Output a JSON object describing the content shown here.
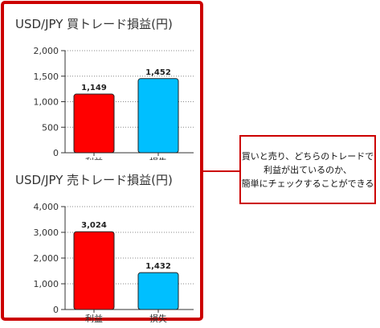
{
  "chart_data": [
    {
      "type": "bar",
      "title": "USD/JPY 買トレード損益(円)",
      "categories": [
        "利益",
        "損失"
      ],
      "values": [
        1149,
        1452
      ],
      "value_labels": [
        "1,149",
        "1,452"
      ],
      "ylim": [
        0,
        2000
      ],
      "yticks": [
        0,
        500,
        1000,
        1500,
        2000
      ],
      "ytick_labels": [
        "0",
        "500",
        "1,000",
        "1,500",
        "2,000"
      ],
      "grid": true,
      "colors": [
        "#ff0000",
        "#00bfff"
      ]
    },
    {
      "type": "bar",
      "title": "USD/JPY 売トレード損益(円)",
      "categories": [
        "利益",
        "損失"
      ],
      "values": [
        3024,
        1432
      ],
      "value_labels": [
        "3,024",
        "1,432"
      ],
      "ylim": [
        0,
        4000
      ],
      "yticks": [
        0,
        1000,
        2000,
        3000,
        4000
      ],
      "ytick_labels": [
        "0",
        "1,000",
        "2,000",
        "3,000",
        "4,000"
      ],
      "grid": true,
      "colors": [
        "#ff0000",
        "#00bfff"
      ]
    }
  ],
  "callout": {
    "lines": [
      "買いと売り、どちらのトレードで",
      "利益が出ているのか、",
      "簡単にチェックすることができる"
    ]
  },
  "colors": {
    "frame": "#cc0000"
  }
}
